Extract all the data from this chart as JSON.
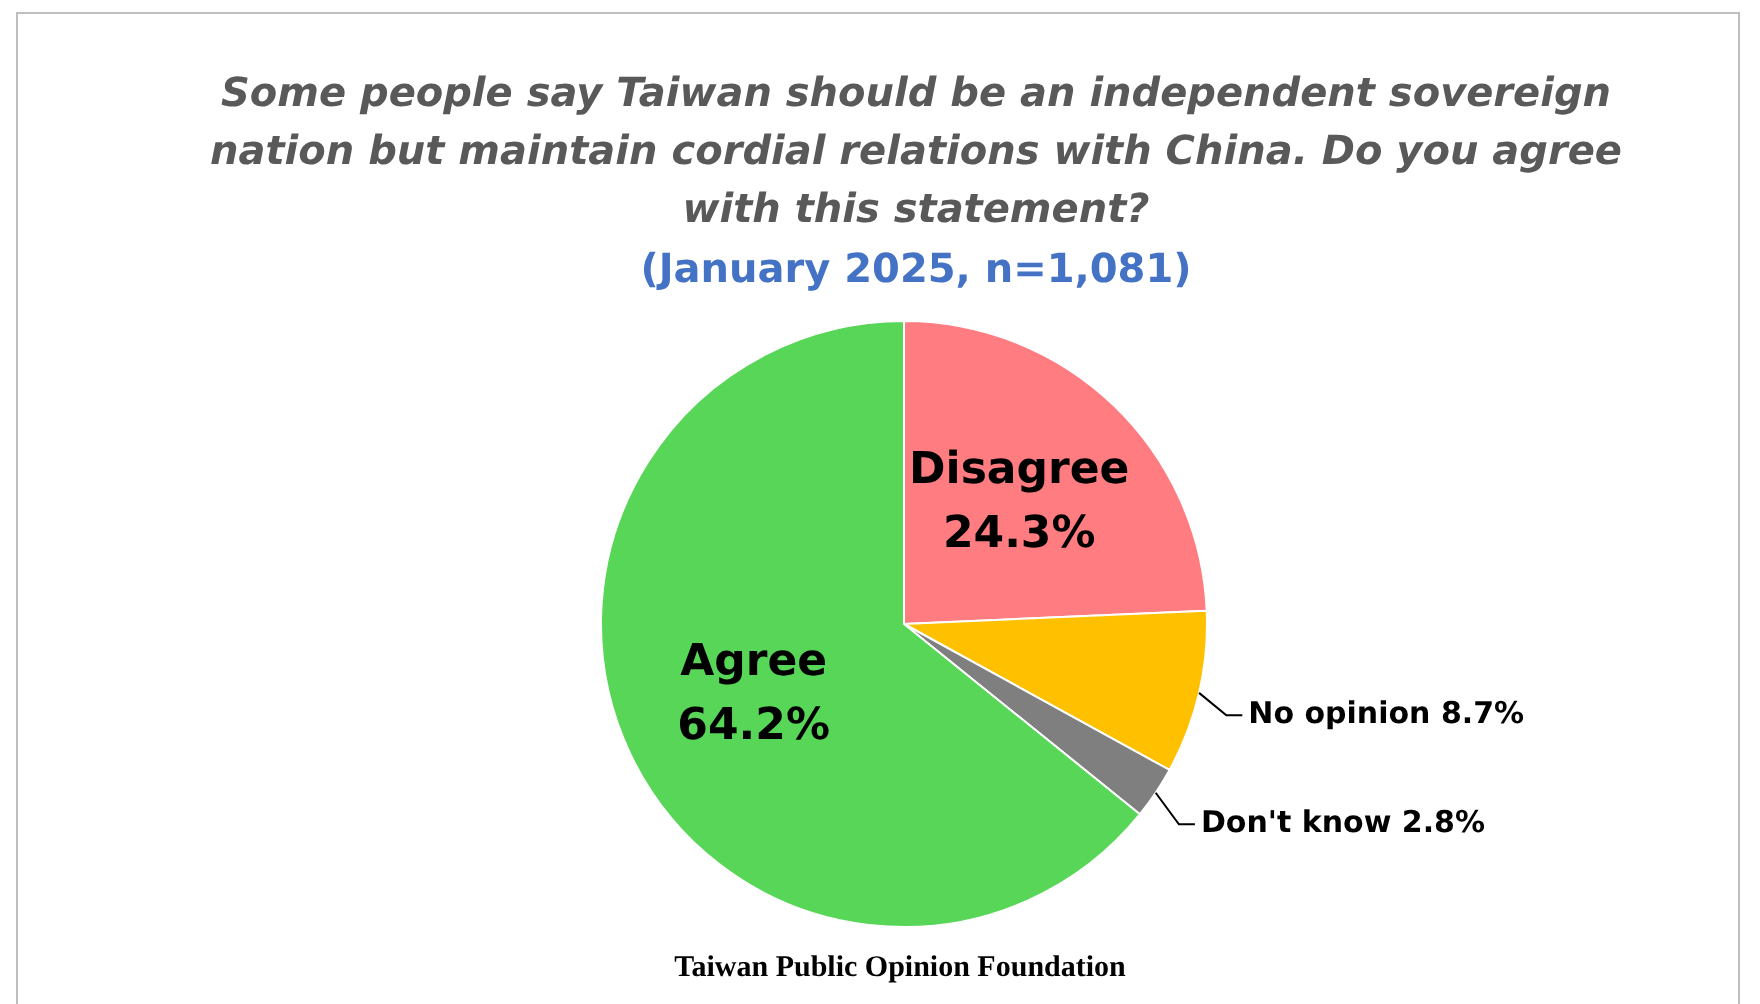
{
  "chart_data": {
    "type": "pie",
    "title": "Some people say Taiwan should be an independent sovereign nation but maintain cordial relations with China. Do you agree with this statement?",
    "subtitle": "(January 2025, n=1,081)",
    "categories": [
      "Disagree",
      "No opinion",
      "Don't know",
      "Agree"
    ],
    "values": [
      24.3,
      8.7,
      2.8,
      64.2
    ],
    "value_labels": [
      "24.3%",
      "8.7%",
      "2.8%",
      "64.2%"
    ],
    "colors": [
      "#ff7c80",
      "#ffc000",
      "#7f7f7f",
      "#57d657"
    ],
    "legend": false,
    "annotations": [
      "Taiwan Public Opinion Foundation"
    ]
  }
}
